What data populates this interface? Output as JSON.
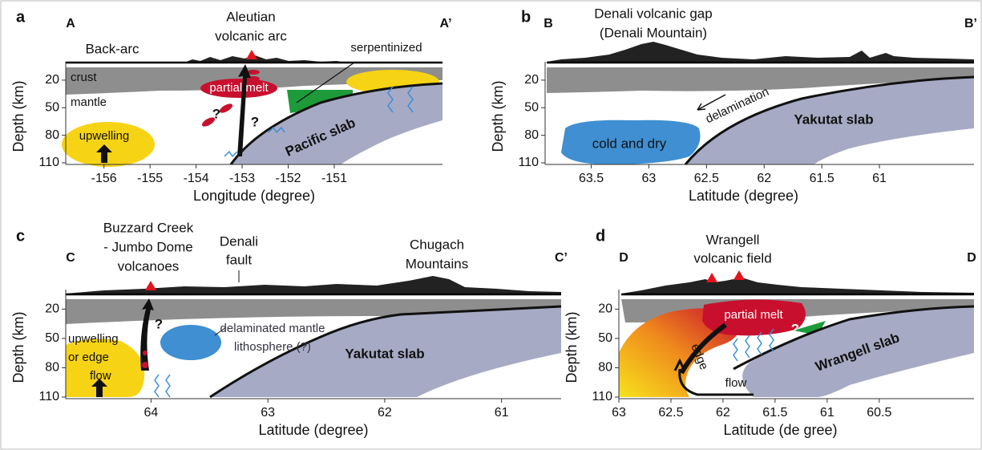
{
  "panels": [
    {
      "letter": "a",
      "start": "A",
      "end": "A’",
      "xlabel": "Longitude (degree)",
      "ylabel": "Depth (km)",
      "xlim": [
        -156.83,
        -148.65
      ],
      "ylim": [
        0,
        110
      ],
      "xticks": [
        -156,
        -155,
        -154,
        -153,
        -152,
        -151
      ],
      "yticks": [
        20,
        50,
        80,
        110
      ],
      "labels": [
        "Back-arc",
        "Aleutian",
        "volcanic arc",
        "serpentinized",
        "crust",
        "mantle",
        "partial melt",
        "?",
        "?",
        "upwelling",
        "Pacific slab"
      ]
    },
    {
      "letter": "b",
      "start": "B",
      "end": "B’",
      "xlabel": "Latitude (degree)",
      "ylabel": "Depth (km)",
      "xlim": [
        63.9,
        60.18
      ],
      "ylim": [
        0,
        110
      ],
      "xticks": [
        63.5,
        63,
        62.5,
        62,
        61.5,
        61
      ],
      "yticks": [
        20,
        50,
        80,
        110
      ],
      "labels": [
        "Denali volcanic gap",
        "(Denali Mountain)",
        "delamination",
        "Yakutat slab",
        "cold and dry"
      ]
    },
    {
      "letter": "c",
      "start": "C",
      "end": "C’",
      "xlabel": "Latitude (degree)",
      "ylabel": "Depth (km)",
      "xlim": [
        64.73,
        60.49
      ],
      "ylim": [
        0,
        110
      ],
      "xticks": [
        64,
        63,
        62,
        61
      ],
      "yticks": [
        20,
        50,
        80,
        110
      ],
      "labels": [
        "Buzzard Creek",
        "- Jumbo Dome",
        "volcanoes",
        "Denali",
        "fault",
        "Chugach",
        "Mountains",
        "delaminated mantle",
        "lithosphere (?)",
        "?",
        "upwelling",
        "or edge",
        "flow",
        "Yakutat slab"
      ]
    },
    {
      "letter": "d",
      "start": "D",
      "end": "D",
      "xlabel": "Latitude (de gree)",
      "ylabel": "Depth (km)",
      "xlim": [
        63,
        59.59
      ],
      "ylim": [
        0,
        110
      ],
      "xticks": [
        63,
        62.5,
        62,
        61.5,
        61,
        60.5
      ],
      "yticks": [
        20,
        50,
        80,
        110
      ],
      "labels": [
        "Wrangell",
        "volcanic field",
        "partial melt",
        "?",
        "Wrangell slab",
        "edge",
        "flow"
      ]
    }
  ]
}
